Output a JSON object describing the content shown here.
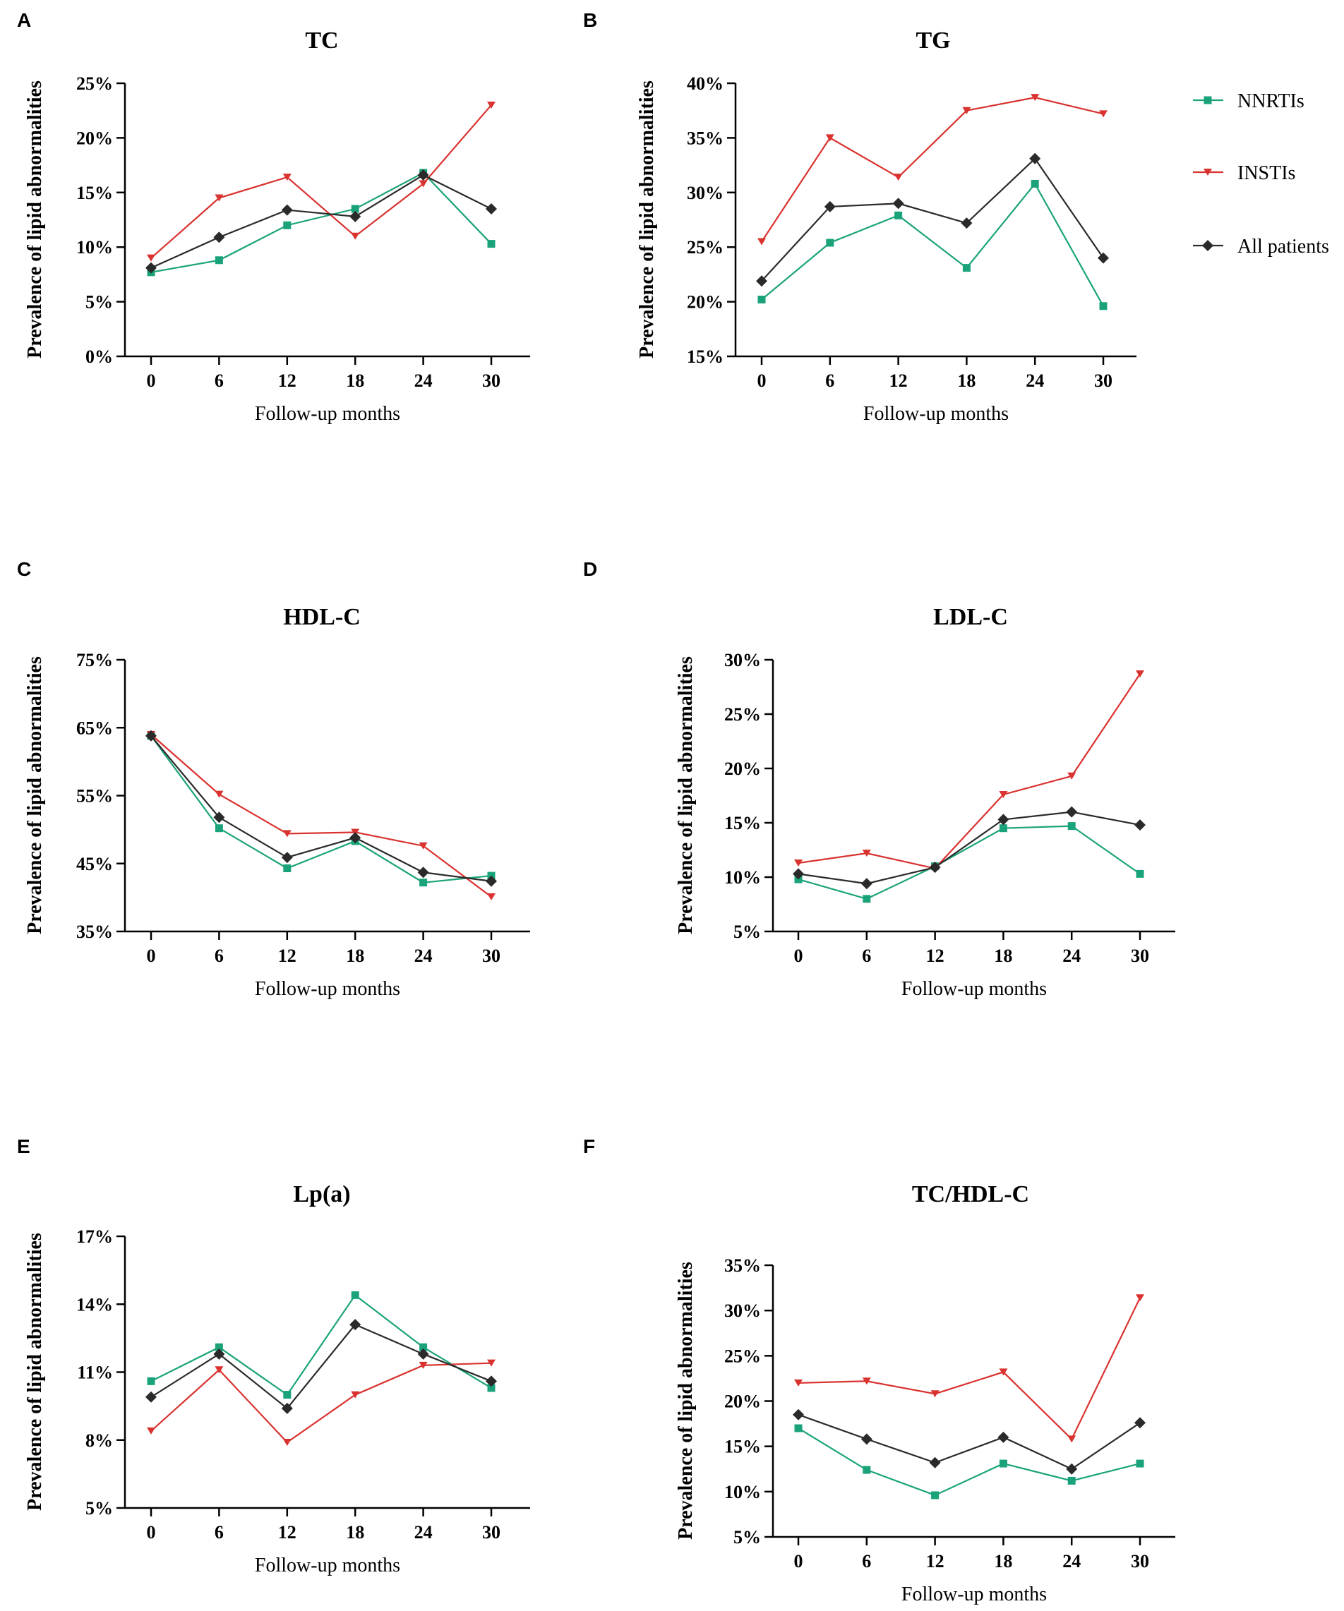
{
  "colors": {
    "nnrti": "#1aa37a",
    "insti": "#d9322f",
    "all": "#2a2a2a"
  },
  "legend": [
    {
      "key": "nnrti",
      "label": "NNRTIs",
      "marker": "square"
    },
    {
      "key": "insti",
      "label": "INSTIs",
      "marker": "triangle-down"
    },
    {
      "key": "all",
      "label": "All patients",
      "marker": "diamond"
    }
  ],
  "chart_data": [
    {
      "panel": "A",
      "type": "line",
      "title": "TC",
      "xlabel": "Follow-up months",
      "ylabel": "Prevalence of lipid abnormalities",
      "x": [
        0,
        6,
        12,
        18,
        24,
        30
      ],
      "yticks": [
        0,
        5,
        10,
        15,
        20,
        25
      ],
      "ylim": [
        0,
        25
      ],
      "ytick_format": "percent",
      "series": [
        {
          "key": "nnrti",
          "name": "NNRTIs",
          "values": [
            7.7,
            8.8,
            12.0,
            13.5,
            16.8,
            10.3
          ]
        },
        {
          "key": "insti",
          "name": "INSTIs",
          "values": [
            9.0,
            14.5,
            16.4,
            11.0,
            15.8,
            23.0
          ]
        },
        {
          "key": "all",
          "name": "All patients",
          "values": [
            8.1,
            10.9,
            13.4,
            12.8,
            16.6,
            13.5
          ]
        }
      ]
    },
    {
      "panel": "B",
      "type": "line",
      "title": "TG",
      "xlabel": "Follow-up months",
      "ylabel": "Prevalence of lipid abnormalities",
      "x": [
        0,
        6,
        12,
        18,
        24,
        30
      ],
      "yticks": [
        15,
        20,
        25,
        30,
        35,
        40
      ],
      "ylim": [
        15,
        40
      ],
      "ytick_format": "percent",
      "series": [
        {
          "key": "nnrti",
          "name": "NNRTIs",
          "values": [
            20.2,
            25.4,
            27.9,
            23.1,
            30.8,
            19.6
          ]
        },
        {
          "key": "insti",
          "name": "INSTIs",
          "values": [
            25.5,
            35.0,
            31.4,
            37.5,
            38.7,
            37.2
          ]
        },
        {
          "key": "all",
          "name": "All patients",
          "values": [
            21.9,
            28.7,
            29.0,
            27.2,
            33.1,
            24.0
          ]
        }
      ]
    },
    {
      "panel": "C",
      "type": "line",
      "title": "HDL-C",
      "xlabel": "Follow-up months",
      "ylabel": "Prevalence of lipid abnormalities",
      "x": [
        0,
        6,
        12,
        18,
        24,
        30
      ],
      "yticks": [
        35,
        45,
        55,
        65,
        75
      ],
      "ylim": [
        35,
        75
      ],
      "ytick_format": "percent",
      "series": [
        {
          "key": "nnrti",
          "name": "NNRTIs",
          "values": [
            63.8,
            50.2,
            44.3,
            48.3,
            42.2,
            43.2
          ]
        },
        {
          "key": "insti",
          "name": "INSTIs",
          "values": [
            64.0,
            55.2,
            49.4,
            49.6,
            47.6,
            40.1
          ]
        },
        {
          "key": "all",
          "name": "All patients",
          "values": [
            63.8,
            51.8,
            45.9,
            48.8,
            43.7,
            42.4
          ]
        }
      ]
    },
    {
      "panel": "D",
      "type": "line",
      "title": "LDL-C",
      "xlabel": "Follow-up months",
      "ylabel": "Prevalence of lipid abnormalities",
      "x": [
        0,
        6,
        12,
        18,
        24,
        30
      ],
      "yticks": [
        5,
        10,
        15,
        20,
        25,
        30
      ],
      "ylim": [
        5,
        30
      ],
      "ytick_format": "percent",
      "series": [
        {
          "key": "nnrti",
          "name": "NNRTIs",
          "values": [
            9.8,
            8.0,
            11.0,
            14.5,
            14.7,
            10.3
          ]
        },
        {
          "key": "insti",
          "name": "INSTIs",
          "values": [
            11.3,
            12.2,
            10.8,
            17.6,
            19.3,
            28.7
          ]
        },
        {
          "key": "all",
          "name": "All patients",
          "values": [
            10.3,
            9.4,
            10.9,
            15.3,
            16.0,
            14.8
          ]
        }
      ]
    },
    {
      "panel": "E",
      "type": "line",
      "title": "Lp(a)",
      "xlabel": "Follow-up months",
      "ylabel": "Prevalence of lipid abnormalities",
      "x": [
        0,
        6,
        12,
        18,
        24,
        30
      ],
      "yticks": [
        5,
        8,
        11,
        14,
        17
      ],
      "ylim": [
        5,
        17
      ],
      "ytick_format": "percent",
      "series": [
        {
          "key": "nnrti",
          "name": "NNRTIs",
          "values": [
            10.6,
            12.1,
            10.0,
            14.4,
            12.1,
            10.3
          ]
        },
        {
          "key": "insti",
          "name": "INSTIs",
          "values": [
            8.4,
            11.1,
            7.9,
            10.0,
            11.3,
            11.4
          ]
        },
        {
          "key": "all",
          "name": "All patients",
          "values": [
            9.9,
            11.8,
            9.4,
            13.1,
            11.8,
            10.6
          ]
        }
      ]
    },
    {
      "panel": "F",
      "type": "line",
      "title": "TC/HDL-C",
      "xlabel": "Follow-up months",
      "ylabel": "Prevalence of lipid abnormalities",
      "x": [
        0,
        6,
        12,
        18,
        24,
        30
      ],
      "yticks": [
        5,
        10,
        15,
        20,
        25,
        30,
        35
      ],
      "ylim": [
        5,
        35
      ],
      "ytick_format": "percent",
      "series": [
        {
          "key": "nnrti",
          "name": "NNRTIs",
          "values": [
            17.0,
            12.4,
            9.6,
            13.1,
            11.2,
            13.1
          ]
        },
        {
          "key": "insti",
          "name": "INSTIs",
          "values": [
            22.0,
            22.2,
            20.8,
            23.2,
            15.8,
            31.4
          ]
        },
        {
          "key": "all",
          "name": "All patients",
          "values": [
            18.5,
            15.8,
            13.2,
            16.0,
            12.5,
            17.6
          ]
        }
      ]
    }
  ]
}
